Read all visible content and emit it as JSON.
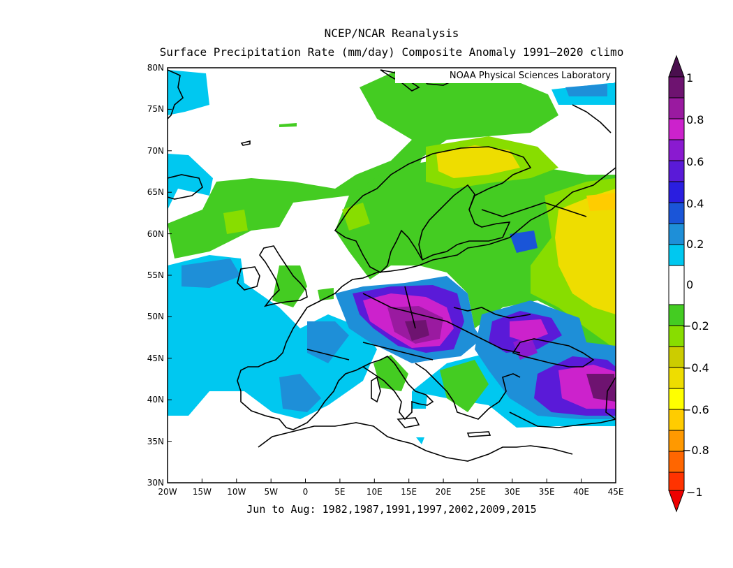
{
  "header": {
    "title": "NCEP/NCAR Reanalysis",
    "subtitle": "Surface Precipitation Rate (mm/day) Composite Anomaly 1991–2020 climo",
    "credit": "NOAA Physical Sciences Laboratory"
  },
  "footer": {
    "period": "Jun to Aug: 1982,1987,1991,1997,2002,2009,2015"
  },
  "map": {
    "projection": "cylindrical-equidistant",
    "lon_range": [
      -20,
      45
    ],
    "lat_range": [
      30,
      80
    ],
    "lon_ticks": [
      "20W",
      "15W",
      "10W",
      "5W",
      "0",
      "5E",
      "10E",
      "15E",
      "20E",
      "25E",
      "30E",
      "35E",
      "40E",
      "45E"
    ],
    "lat_ticks": [
      "30N",
      "35N",
      "40N",
      "45N",
      "50N",
      "55N",
      "60N",
      "65N",
      "70N",
      "75N",
      "80N"
    ]
  },
  "colorbar": {
    "labels": [
      "1",
      "0.8",
      "0.6",
      "0.4",
      "0.2",
      "0",
      "−0.2",
      "−0.4",
      "−0.6",
      "−0.8",
      "−1"
    ],
    "levels": [
      1.0,
      0.9,
      0.8,
      0.7,
      0.6,
      0.5,
      0.4,
      0.3,
      0.2,
      0.1,
      0.0,
      -0.1,
      -0.2,
      -0.3,
      -0.4,
      -0.5,
      -0.6,
      -0.7,
      -0.8,
      -0.9,
      -1.0
    ],
    "colors": {
      "above_1": "#4a0f4e",
      "0.9_to_1": "#6e1370",
      "0.8_to_0.9": "#9a1aa0",
      "0.7_to_0.8": "#cc22cc",
      "0.6_to_0.7": "#8a1ad0",
      "0.5_to_0.6": "#5a1ad8",
      "0.4_to_0.5": "#2a1ee0",
      "0.3_to_0.4": "#1a55d8",
      "0.2_to_0.3": "#1e8fd8",
      "0.1_to_0.2": "#00c8f0",
      "-0.1_to_0.1": "#ffffff",
      "-0.2_to_-0.1": "#44cc22",
      "-0.3_to_-0.2": "#88dd00",
      "-0.4_to_-0.3": "#cccc00",
      "-0.5_to_-0.4": "#eedd00",
      "-0.6_to_-0.5": "#ffff00",
      "-0.7_to_-0.6": "#ffcc00",
      "-0.8_to_-0.7": "#ff9900",
      "-0.9_to_-0.8": "#ff6600",
      "-1_to_-0.9": "#ff3300",
      "below_-1": "#ee0000"
    }
  }
}
